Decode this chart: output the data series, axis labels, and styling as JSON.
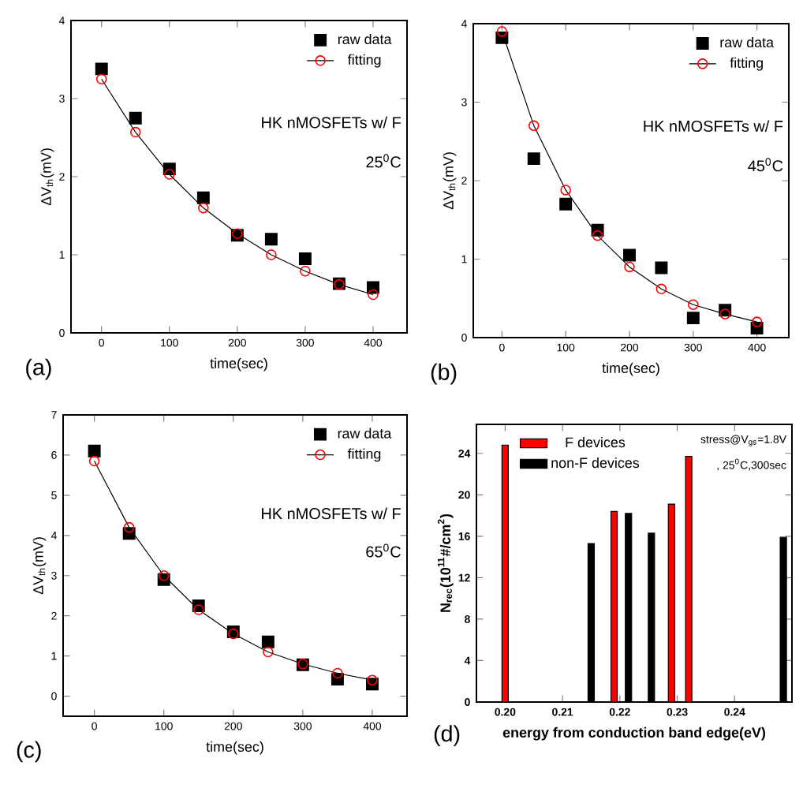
{
  "chart_data": [
    {
      "type": "scatter",
      "xlabel": "time(sec)",
      "ylabel": "ΔV$_{th}$(mV)",
      "x": [
        0,
        50,
        100,
        150,
        200,
        250,
        300,
        350,
        400
      ],
      "xlim": [
        -45,
        450
      ],
      "ylim": [
        0,
        4
      ],
      "xticks": [
        0,
        100,
        200,
        300,
        400
      ],
      "yticks": [
        0,
        1,
        2,
        3,
        4
      ],
      "legend": "top right",
      "series": [
        {
          "name": "raw data",
          "type": "scatter",
          "marker": "square",
          "color": "#000000",
          "values": [
            3.38,
            2.75,
            2.1,
            1.73,
            1.25,
            1.2,
            0.95,
            0.63,
            0.58
          ]
        },
        {
          "name": "fitting",
          "type": "line",
          "marker": "circle",
          "color": "#ff0000",
          "values": [
            3.25,
            2.57,
            2.03,
            1.6,
            1.27,
            1.0,
            0.79,
            0.62,
            0.49
          ]
        }
      ],
      "annotations": [
        "HK nMOSFETs w/ F",
        "25$^{0}$C",
        "(a)"
      ]
    },
    {
      "type": "scatter",
      "xlabel": "time(sec)",
      "ylabel": "ΔV$_{th}$(mV)",
      "x": [
        0,
        50,
        100,
        150,
        200,
        250,
        300,
        350,
        400
      ],
      "xlim": [
        -45,
        450
      ],
      "ylim": [
        0,
        4
      ],
      "xticks": [
        0,
        100,
        200,
        300,
        400
      ],
      "yticks": [
        0,
        1,
        2,
        3,
        4
      ],
      "legend": "top right",
      "series": [
        {
          "name": "raw data",
          "type": "scatter",
          "marker": "square",
          "color": "#000000",
          "values": [
            3.82,
            2.28,
            1.7,
            1.37,
            1.05,
            0.89,
            0.25,
            0.35,
            0.12
          ]
        },
        {
          "name": "fitting",
          "type": "line",
          "marker": "circle",
          "color": "#ff0000",
          "values": [
            3.9,
            2.7,
            1.88,
            1.3,
            0.9,
            0.62,
            0.42,
            0.3,
            0.2
          ]
        }
      ],
      "annotations": [
        "HK nMOSFETs w/ F",
        "45$^{0}$C",
        "(b)"
      ]
    },
    {
      "type": "scatter",
      "xlabel": "time(sec)",
      "ylabel": "ΔV$_{th}$(mV)",
      "x": [
        0,
        50,
        100,
        150,
        200,
        250,
        300,
        350,
        400
      ],
      "xlim": [
        -45,
        450
      ],
      "ylim": [
        -0.5,
        7
      ],
      "xticks": [
        0,
        100,
        200,
        300,
        400
      ],
      "yticks": [
        0,
        1,
        2,
        3,
        4,
        5,
        6,
        7
      ],
      "legend": "top right",
      "series": [
        {
          "name": "raw data",
          "type": "scatter",
          "marker": "square",
          "color": "#000000",
          "values": [
            6.1,
            4.05,
            2.9,
            2.25,
            1.6,
            1.35,
            0.78,
            0.42,
            0.3
          ]
        },
        {
          "name": "fitting",
          "type": "line",
          "marker": "circle",
          "color": "#ff0000",
          "values": [
            5.85,
            4.2,
            3.0,
            2.15,
            1.55,
            1.1,
            0.8,
            0.57,
            0.4
          ]
        }
      ],
      "annotations": [
        "HK nMOSFETs w/ F",
        "65$^{0}$C",
        "(c)"
      ]
    },
    {
      "type": "bar",
      "xlabel": "energy from conduction band edge(eV)",
      "ylabel": "N$_{rec}$(10$^{11}$#/cm$^{2}$)",
      "xlim": [
        0.195,
        0.25
      ],
      "ylim": [
        0,
        26.8
      ],
      "xticks": [
        {
          "value": 0.2,
          "label": "0.20"
        },
        {
          "value": 0.21,
          "label": "0.21"
        },
        {
          "value": 0.22,
          "label": "0.22"
        },
        {
          "value": 0.23,
          "label": "0.23"
        },
        {
          "value": 0.24,
          "label": "0.24"
        }
      ],
      "yticks": [
        0,
        4,
        8,
        12,
        16,
        20,
        24
      ],
      "legend": "top left",
      "series": [
        {
          "name": "F devices",
          "color": "#ff0000",
          "x": [
            0.2,
            0.219,
            0.229,
            0.232
          ],
          "values": [
            24.8,
            18.4,
            19.1,
            23.7
          ]
        },
        {
          "name": "non-F devices",
          "color": "#000000",
          "x": [
            0.215,
            0.2215,
            0.2255,
            0.2485
          ],
          "values": [
            15.3,
            18.2,
            16.3,
            15.9
          ]
        }
      ],
      "annotations": [
        "stress@V$_{gs}$=1.8V",
        ", 25$^{0}$C,300sec",
        "(d)"
      ]
    }
  ]
}
